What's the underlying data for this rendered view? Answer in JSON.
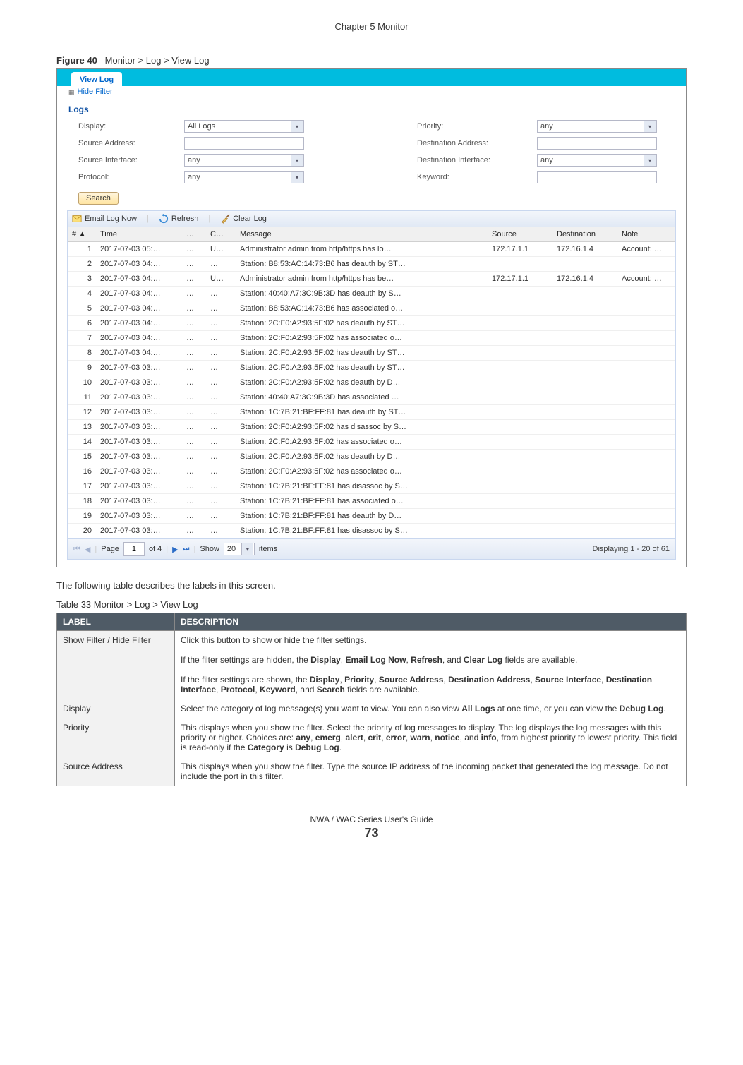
{
  "header": {
    "chapter": "Chapter 5 Monitor"
  },
  "figure": {
    "num": "Figure 40",
    "title": "Monitor > Log > View Log"
  },
  "shot": {
    "tab": "View Log",
    "hide_filter": "Hide Filter",
    "logs_label": "Logs",
    "labels": {
      "display": "Display:",
      "priority": "Priority:",
      "src_addr": "Source Address:",
      "dst_addr": "Destination Address:",
      "src_if": "Source Interface:",
      "dst_if": "Destination Interface:",
      "protocol": "Protocol:",
      "keyword": "Keyword:"
    },
    "values": {
      "display": "All Logs",
      "priority": "any",
      "src_if": "any",
      "dst_if": "any",
      "protocol": "any"
    },
    "search": "Search",
    "toolbar": {
      "email": "Email Log Now",
      "refresh": "Refresh",
      "clear": "Clear Log"
    },
    "cols": {
      "num": "# ▲",
      "time": "Time",
      "dots": "…",
      "cat": "C…",
      "msg": "Message",
      "src": "Source",
      "dst": "Destination",
      "note": "Note"
    },
    "rows": [
      {
        "n": "1",
        "t": "2017-07-03 05:…",
        "d": "…",
        "c": "U…",
        "m": "Administrator admin from http/https has lo…",
        "s": "172.17.1.1",
        "dst": "172.16.1.4",
        "note": "Account: …"
      },
      {
        "n": "2",
        "t": "2017-07-03 04:…",
        "d": "…",
        "c": "…",
        "m": "Station: B8:53:AC:14:73:B6 has deauth by ST…",
        "s": "",
        "dst": "",
        "note": ""
      },
      {
        "n": "3",
        "t": "2017-07-03 04:…",
        "d": "…",
        "c": "U…",
        "m": "Administrator admin from http/https has be…",
        "s": "172.17.1.1",
        "dst": "172.16.1.4",
        "note": "Account: …"
      },
      {
        "n": "4",
        "t": "2017-07-03 04:…",
        "d": "…",
        "c": "…",
        "m": "Station: 40:40:A7:3C:9B:3D has deauth by S…",
        "s": "",
        "dst": "",
        "note": ""
      },
      {
        "n": "5",
        "t": "2017-07-03 04:…",
        "d": "…",
        "c": "…",
        "m": "Station: B8:53:AC:14:73:B6 has associated o…",
        "s": "",
        "dst": "",
        "note": ""
      },
      {
        "n": "6",
        "t": "2017-07-03 04:…",
        "d": "…",
        "c": "…",
        "m": "Station: 2C:F0:A2:93:5F:02 has deauth by ST…",
        "s": "",
        "dst": "",
        "note": ""
      },
      {
        "n": "7",
        "t": "2017-07-03 04:…",
        "d": "…",
        "c": "…",
        "m": "Station: 2C:F0:A2:93:5F:02 has associated o…",
        "s": "",
        "dst": "",
        "note": ""
      },
      {
        "n": "8",
        "t": "2017-07-03 04:…",
        "d": "…",
        "c": "…",
        "m": "Station: 2C:F0:A2:93:5F:02 has deauth by ST…",
        "s": "",
        "dst": "",
        "note": ""
      },
      {
        "n": "9",
        "t": "2017-07-03 03:…",
        "d": "…",
        "c": "…",
        "m": "Station: 2C:F0:A2:93:5F:02 has deauth by ST…",
        "s": "",
        "dst": "",
        "note": ""
      },
      {
        "n": "10",
        "t": "2017-07-03 03:…",
        "d": "…",
        "c": "…",
        "m": "Station: 2C:F0:A2:93:5F:02 has deauth by D…",
        "s": "",
        "dst": "",
        "note": ""
      },
      {
        "n": "11",
        "t": "2017-07-03 03:…",
        "d": "…",
        "c": "…",
        "m": "Station: 40:40:A7:3C:9B:3D has associated …",
        "s": "",
        "dst": "",
        "note": ""
      },
      {
        "n": "12",
        "t": "2017-07-03 03:…",
        "d": "…",
        "c": "…",
        "m": "Station: 1C:7B:21:BF:FF:81 has deauth by ST…",
        "s": "",
        "dst": "",
        "note": ""
      },
      {
        "n": "13",
        "t": "2017-07-03 03:…",
        "d": "…",
        "c": "…",
        "m": "Station: 2C:F0:A2:93:5F:02 has disassoc by S…",
        "s": "",
        "dst": "",
        "note": ""
      },
      {
        "n": "14",
        "t": "2017-07-03 03:…",
        "d": "…",
        "c": "…",
        "m": "Station: 2C:F0:A2:93:5F:02 has associated o…",
        "s": "",
        "dst": "",
        "note": ""
      },
      {
        "n": "15",
        "t": "2017-07-03 03:…",
        "d": "…",
        "c": "…",
        "m": "Station: 2C:F0:A2:93:5F:02 has deauth by D…",
        "s": "",
        "dst": "",
        "note": ""
      },
      {
        "n": "16",
        "t": "2017-07-03 03:…",
        "d": "…",
        "c": "…",
        "m": "Station: 2C:F0:A2:93:5F:02 has associated o…",
        "s": "",
        "dst": "",
        "note": ""
      },
      {
        "n": "17",
        "t": "2017-07-03 03:…",
        "d": "…",
        "c": "…",
        "m": "Station: 1C:7B:21:BF:FF:81 has disassoc by S…",
        "s": "",
        "dst": "",
        "note": ""
      },
      {
        "n": "18",
        "t": "2017-07-03 03:…",
        "d": "…",
        "c": "…",
        "m": "Station: 1C:7B:21:BF:FF:81 has associated o…",
        "s": "",
        "dst": "",
        "note": ""
      },
      {
        "n": "19",
        "t": "2017-07-03 03:…",
        "d": "…",
        "c": "…",
        "m": "Station: 1C:7B:21:BF:FF:81 has deauth by D…",
        "s": "",
        "dst": "",
        "note": ""
      },
      {
        "n": "20",
        "t": "2017-07-03 03:…",
        "d": "…",
        "c": "…",
        "m": "Station: 1C:7B:21:BF:FF:81 has disassoc by S…",
        "s": "",
        "dst": "",
        "note": ""
      }
    ],
    "pager": {
      "page_label": "Page",
      "page_val": "1",
      "of": "of 4",
      "show": "Show",
      "show_val": "20",
      "items": "items",
      "status": "Displaying 1 - 20 of 61"
    }
  },
  "body_text": "The following table describes the labels in this screen.",
  "table": {
    "cap": "Table 33   Monitor > Log > View Log",
    "h1": "LABEL",
    "h2": "DESCRIPTION",
    "rows": [
      {
        "l": "Show Filter / Hide Filter",
        "d": "Click this button to show or hide the filter settings.<br><br>If the filter settings are hidden, the <b>Display</b>, <b>Email Log Now</b>, <b>Refresh</b>, and <b>Clear Log</b> fields are available.<br><br>If the filter settings are shown, the <b>Display</b>, <b>Priority</b>, <b>Source Address</b>, <b>Destination Address</b>, <b>Source Interface</b>, <b>Destination Interface</b>, <b>Protocol</b>, <b>Keyword</b>, and <b>Search</b> fields are available."
      },
      {
        "l": "Display",
        "d": "Select the category of log message(s) you want to view. You can also view <b>All Logs</b> at one time, or you can view the <b>Debug Log</b>."
      },
      {
        "l": "Priority",
        "d": "This displays when you show the filter. Select the priority of log messages to display. The log displays the log messages with this priority or higher. Choices are: <b>any</b>, <b>emerg</b>, <b>alert</b>, <b>crit</b>, <b>error</b>, <b>warn</b>, <b>notice</b>, and <b>info</b>, from highest priority to lowest priority. This field is read-only if the <b>Category</b> is <b>Debug Log</b>."
      },
      {
        "l": "Source Address",
        "d": "This displays when you show the filter. Type the source IP address of the incoming packet that generated the log message. Do not include the port in this filter."
      }
    ]
  },
  "footer": {
    "guide": "NWA / WAC Series User's Guide",
    "page": "73"
  }
}
